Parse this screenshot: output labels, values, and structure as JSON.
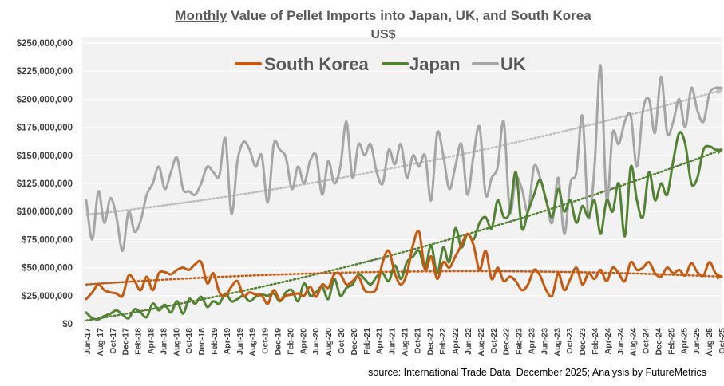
{
  "chart_data": {
    "type": "line",
    "title_underlined": "Monthly",
    "title_rest": " Value of Pellet Imports into Japan, UK, and South Korea",
    "subtitle": "US$",
    "source": "source: International Trade Data, December 2025; Analysis by FutureMetrics",
    "ylim": [
      0,
      250000000
    ],
    "y_ticks": [
      0,
      25000000,
      50000000,
      75000000,
      100000000,
      125000000,
      150000000,
      175000000,
      200000000,
      225000000,
      250000000
    ],
    "y_tick_labels": [
      "$0",
      "$25,000,000",
      "$50,000,000",
      "$75,000,000",
      "$100,000,000",
      "$125,000,000",
      "$150,000,000",
      "$175,000,000",
      "$200,000,000",
      "$225,000,000",
      "$250,000,000"
    ],
    "x_tick_labels": [
      "Jun-17",
      "Aug-17",
      "Oct-17",
      "Dec-17",
      "Feb-18",
      "Apr-18",
      "Jun-18",
      "Aug-18",
      "Oct-18",
      "Dec-18",
      "Feb-19",
      "Apr-19",
      "Jun-19",
      "Aug-19",
      "Oct-19",
      "Dec-19",
      "Feb-20",
      "Apr-20",
      "Jun-20",
      "Aug-20",
      "Oct-20",
      "Dec-20",
      "Feb-21",
      "Apr-21",
      "Jun-21",
      "Aug-21",
      "Oct-21",
      "Dec-21",
      "Feb-22",
      "Apr-22",
      "Jun-22",
      "Aug-22",
      "Oct-22",
      "Dec-22",
      "Feb-23",
      "Apr-23",
      "Jun-23",
      "Aug-23",
      "Oct-23",
      "Dec-23",
      "Feb-24",
      "Apr-24",
      "Jun-24",
      "Aug-24",
      "Oct-24",
      "Dec-24",
      "Feb-25",
      "Apr-25",
      "Jun-25",
      "Aug-25",
      "Oct-25"
    ],
    "grid": true,
    "legend": "top",
    "series": [
      {
        "name": "South Korea",
        "color": "#c55a11",
        "trend_color": "#c55a11",
        "values": [
          22000000,
          28000000,
          35000000,
          30000000,
          28000000,
          27000000,
          25000000,
          43000000,
          38000000,
          30000000,
          42000000,
          30000000,
          45000000,
          46000000,
          44000000,
          48000000,
          50000000,
          48000000,
          53000000,
          55000000,
          36000000,
          45000000,
          28000000,
          25000000,
          33000000,
          38000000,
          25000000,
          28000000,
          26000000,
          25000000,
          18000000,
          30000000,
          21000000,
          25000000,
          26000000,
          27000000,
          25000000,
          33000000,
          24000000,
          35000000,
          32000000,
          44000000,
          44000000,
          35000000,
          38000000,
          42000000,
          30000000,
          28000000,
          32000000,
          55000000,
          65000000,
          45000000,
          35000000,
          45000000,
          70000000,
          82000000,
          48000000,
          60000000,
          40000000,
          55000000,
          50000000,
          60000000,
          70000000,
          80000000,
          70000000,
          48000000,
          65000000,
          40000000,
          50000000,
          38000000,
          42000000,
          38000000,
          30000000,
          35000000,
          48000000,
          43000000,
          30000000,
          25000000,
          45000000,
          30000000,
          40000000,
          50000000,
          35000000,
          45000000,
          40000000,
          48000000,
          38000000,
          50000000,
          45000000,
          38000000,
          55000000,
          48000000,
          50000000,
          55000000,
          45000000,
          42000000,
          50000000,
          45000000,
          48000000,
          43000000,
          54000000,
          46000000,
          43000000,
          55000000,
          45000000,
          42000000
        ],
        "trend_start": 35000000,
        "trend_end": 42000000
      },
      {
        "name": "Japan",
        "color": "#548235",
        "trend_color": "#548235",
        "values": [
          10000000,
          5000000,
          4000000,
          7000000,
          9000000,
          12000000,
          8000000,
          5000000,
          13000000,
          10000000,
          6000000,
          18000000,
          12000000,
          17000000,
          10000000,
          20000000,
          9000000,
          22000000,
          18000000,
          24000000,
          15000000,
          20000000,
          18000000,
          27000000,
          20000000,
          22000000,
          25000000,
          20000000,
          24000000,
          26000000,
          25000000,
          27000000,
          20000000,
          28000000,
          30000000,
          20000000,
          36000000,
          25000000,
          28000000,
          33000000,
          22000000,
          40000000,
          25000000,
          32000000,
          35000000,
          44000000,
          40000000,
          35000000,
          42000000,
          45000000,
          38000000,
          52000000,
          40000000,
          55000000,
          60000000,
          65000000,
          50000000,
          70000000,
          45000000,
          68000000,
          55000000,
          85000000,
          68000000,
          80000000,
          75000000,
          90000000,
          95000000,
          85000000,
          110000000,
          95000000,
          100000000,
          135000000,
          85000000,
          100000000,
          115000000,
          128000000,
          110000000,
          95000000,
          120000000,
          100000000,
          110000000,
          90000000,
          105000000,
          95000000,
          110000000,
          80000000,
          110000000,
          100000000,
          125000000,
          78000000,
          140000000,
          110000000,
          95000000,
          135000000,
          110000000,
          125000000,
          115000000,
          145000000,
          170000000,
          160000000,
          125000000,
          130000000,
          155000000,
          158000000,
          155000000,
          155000000
        ],
        "trend_start": 3000000,
        "trend_end": 155000000
      },
      {
        "name": "UK",
        "color": "#a6a6a6",
        "trend_color": "#bfbfbf",
        "values": [
          110000000,
          75000000,
          118000000,
          90000000,
          112000000,
          95000000,
          65000000,
          100000000,
          82000000,
          92000000,
          115000000,
          125000000,
          140000000,
          120000000,
          135000000,
          148000000,
          120000000,
          118000000,
          115000000,
          125000000,
          140000000,
          135000000,
          132000000,
          165000000,
          98000000,
          145000000,
          162000000,
          155000000,
          140000000,
          150000000,
          108000000,
          160000000,
          155000000,
          148000000,
          120000000,
          140000000,
          125000000,
          145000000,
          150000000,
          115000000,
          145000000,
          125000000,
          140000000,
          180000000,
          130000000,
          160000000,
          150000000,
          160000000,
          135000000,
          125000000,
          155000000,
          142000000,
          160000000,
          130000000,
          150000000,
          140000000,
          150000000,
          110000000,
          170000000,
          150000000,
          120000000,
          140000000,
          160000000,
          115000000,
          150000000,
          175000000,
          115000000,
          130000000,
          140000000,
          180000000,
          100000000,
          130000000,
          120000000,
          100000000,
          140000000,
          130000000,
          110000000,
          90000000,
          130000000,
          80000000,
          125000000,
          135000000,
          185000000,
          95000000,
          140000000,
          230000000,
          110000000,
          170000000,
          160000000,
          180000000,
          185000000,
          140000000,
          190000000,
          200000000,
          170000000,
          220000000,
          170000000,
          180000000,
          200000000,
          175000000,
          210000000,
          190000000,
          180000000,
          205000000,
          210000000,
          210000000
        ],
        "trend_start": 97000000,
        "trend_end": 208000000
      }
    ]
  }
}
